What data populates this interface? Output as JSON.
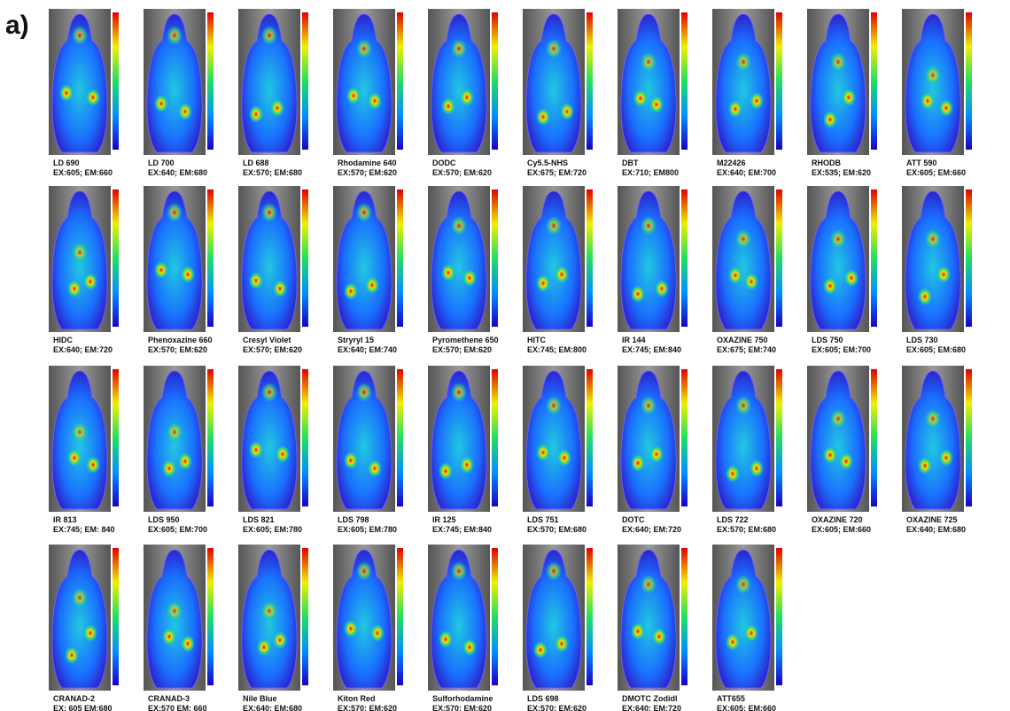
{
  "panel_label": "a)",
  "panels": [
    {
      "name": "LD 690",
      "conditions": "EX:605; EM:660"
    },
    {
      "name": "LD 700",
      "conditions": "EX:640; EM:680"
    },
    {
      "name": "LD 688",
      "conditions": "EX:570; EM:680"
    },
    {
      "name": "Rhodamine 640",
      "conditions": "EX:570; EM:620"
    },
    {
      "name": "DODC",
      "conditions": "EX:570; EM:620"
    },
    {
      "name": "Cy5.5-NHS",
      "conditions": "EX:675; EM:720"
    },
    {
      "name": "DBT",
      "conditions": "EX:710; EM800"
    },
    {
      "name": "M22426",
      "conditions": "EX:640; EM:700"
    },
    {
      "name": "RHODB",
      "conditions": "EX:535; EM:620"
    },
    {
      "name": "ATT 590",
      "conditions": "EX:605; EM:660"
    },
    {
      "name": "HIDC",
      "conditions": "EX:640; EM:720"
    },
    {
      "name": "Phenoxazine 660",
      "conditions": "EX:570; EM:620"
    },
    {
      "name": "Cresyl Violet",
      "conditions": "EX:570; EM:620"
    },
    {
      "name": "Stryryl 15",
      "conditions": "EX:640; EM:740"
    },
    {
      "name": "Pyromethene 650",
      "conditions": "EX:570; EM:620"
    },
    {
      "name": "HITC",
      "conditions": "EX:745; EM:800"
    },
    {
      "name": "IR 144",
      "conditions": "EX:745; EM:840"
    },
    {
      "name": "OXAZINE 750",
      "conditions": "EX:675; EM:740"
    },
    {
      "name": "LDS 750",
      "conditions": "EX:605; EM:700"
    },
    {
      "name": "LDS 730",
      "conditions": "EX:605; EM:680"
    },
    {
      "name": "IR 813",
      "conditions": "EX:745; EM: 840"
    },
    {
      "name": "LDS 950",
      "conditions": "EX:605; EM:700"
    },
    {
      "name": "LDS 821",
      "conditions": "EX:605; EM:780"
    },
    {
      "name": "LDS 798",
      "conditions": "EX:605; EM:780"
    },
    {
      "name": "IR 125",
      "conditions": "EX:745; EM:840"
    },
    {
      "name": "LDS 751",
      "conditions": "EX:570; EM:680"
    },
    {
      "name": "DOTC",
      "conditions": "EX:640; EM:720"
    },
    {
      "name": "LDS 722",
      "conditions": "EX:570; EM:680"
    },
    {
      "name": "OXAZINE 720",
      "conditions": "EX:605; EM:660"
    },
    {
      "name": "OXAZINE 725",
      "conditions": "EX:640; EM:680"
    },
    {
      "name": "CRANAD-2",
      "conditions": "EX: 605 EM:680"
    },
    {
      "name": "CRANAD-3",
      "conditions": "EX:570 EM: 660"
    },
    {
      "name": "Nile Blue",
      "conditions": "EX:640; EM:680"
    },
    {
      "name": "Kiton Red",
      "conditions": "EX:570; EM:620"
    },
    {
      "name": "Sulforhodamine",
      "conditions": "EX:570; EM:620"
    },
    {
      "name": "LDS 698",
      "conditions": "EX:570; EM:620"
    },
    {
      "name": "DMOTC Zodidl",
      "conditions": "EX:640; EM:720"
    },
    {
      "name": "ATT655",
      "conditions": "EX:605; EM:660"
    }
  ]
}
